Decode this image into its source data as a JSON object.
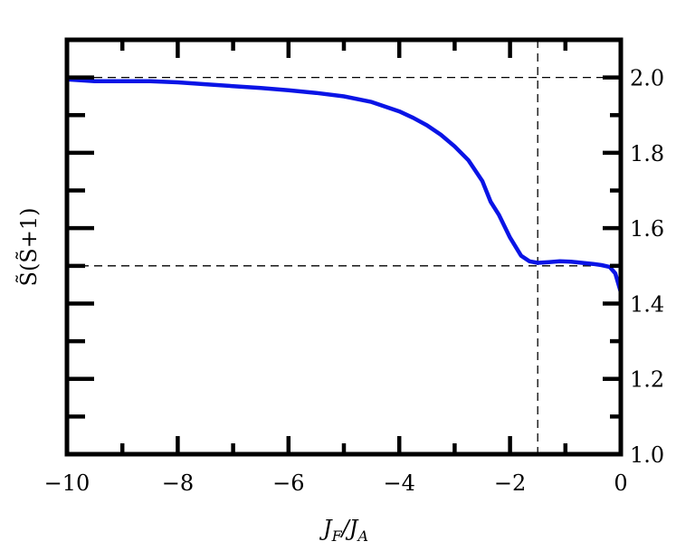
{
  "chart_data": {
    "type": "line",
    "xlabel_main": "J",
    "xlabel_sub1": "F",
    "xlabel_sep": "/J",
    "xlabel_sub2": "A",
    "ylabel": "S̃(S̃+1)",
    "xlim": [
      -10,
      0
    ],
    "ylim": [
      1.0,
      2.1
    ],
    "x_ticks": [
      -10,
      -8,
      -6,
      -4,
      -2,
      0
    ],
    "x_tick_labels": [
      "−10",
      "−8",
      "−6",
      "−4",
      "−2",
      "0"
    ],
    "x_minor_ticks": [
      -9,
      -7,
      -5,
      -3,
      -1
    ],
    "y_ticks": [
      1.0,
      1.2,
      1.4,
      1.6,
      1.8,
      2.0
    ],
    "y_tick_labels": [
      "1.0",
      "1.2",
      "1.4",
      "1.6",
      "1.8",
      "2.0"
    ],
    "y_minor_ticks": [
      1.1,
      1.3,
      1.5,
      1.7,
      1.9
    ],
    "y_axis_side": "right",
    "grid": false,
    "reference_lines": {
      "horizontal": [
        2.0,
        1.5
      ],
      "vertical": [
        -1.5
      ]
    },
    "series": [
      {
        "color": "#0a14e6",
        "x": [
          -10,
          -9.5,
          -9,
          -8.5,
          -8,
          -7.5,
          -7,
          -6.5,
          -6,
          -5.5,
          -5,
          -4.5,
          -4,
          -3.75,
          -3.5,
          -3.25,
          -3,
          -2.75,
          -2.5,
          -2.35,
          -2.2,
          -2,
          -1.8,
          -1.65,
          -1.5,
          -1.3,
          -1.1,
          -0.9,
          -0.7,
          -0.5,
          -0.35,
          -0.2,
          -0.1,
          0
        ],
        "y": [
          1.995,
          1.99,
          1.99,
          1.99,
          1.987,
          1.982,
          1.977,
          1.972,
          1.966,
          1.959,
          1.95,
          1.935,
          1.91,
          1.893,
          1.873,
          1.848,
          1.817,
          1.78,
          1.725,
          1.67,
          1.635,
          1.575,
          1.527,
          1.512,
          1.508,
          1.51,
          1.512,
          1.511,
          1.508,
          1.505,
          1.502,
          1.497,
          1.48,
          1.43
        ]
      }
    ]
  }
}
